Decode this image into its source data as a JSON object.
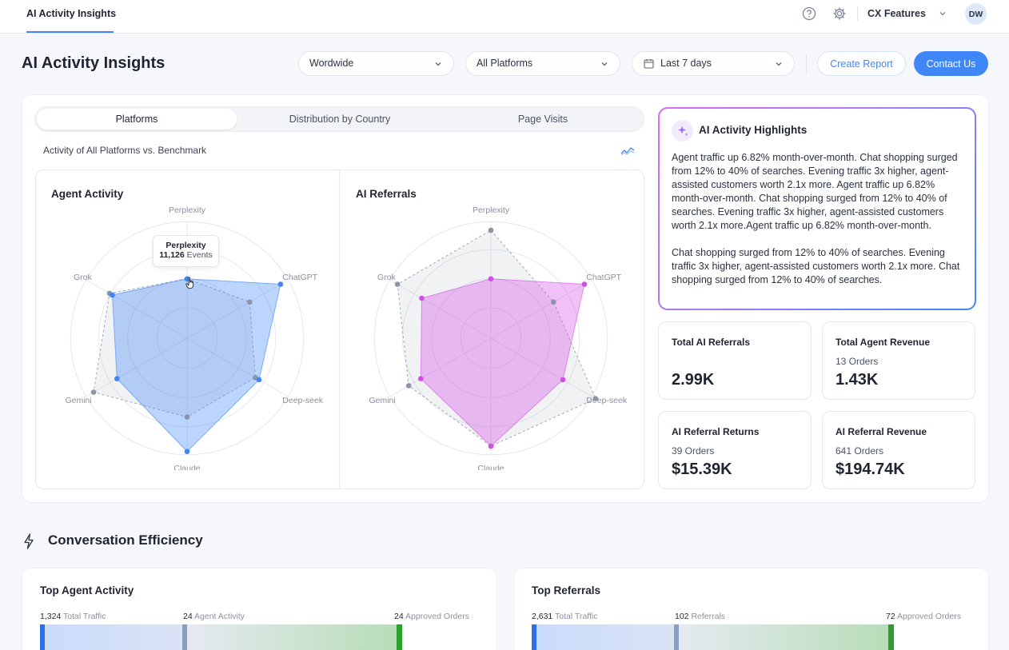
{
  "topbar": {
    "tab_label": "AI Activity Insights",
    "workspace": "CX Features",
    "avatar_initials": "DW",
    "icons": [
      "help-icon",
      "gear-icon",
      "chevron-down-icon"
    ]
  },
  "header": {
    "title": "AI Activity Insights",
    "region_select": "Wordwide",
    "platform_select": "All Platforms",
    "date_select": "Last 7 days",
    "create_report": "Create Report",
    "contact_us": "Contact Us"
  },
  "tabs": [
    {
      "label": "Platforms",
      "active": true
    },
    {
      "label": "Distribution by Country",
      "active": false
    },
    {
      "label": "Page Visits",
      "active": false
    }
  ],
  "chart_section": {
    "subtitle": "Activity of All Platforms vs. Benchmark"
  },
  "chart_data": [
    {
      "type": "radar",
      "title": "Agent Activity",
      "categories": [
        "Perplexity",
        "ChatGPT",
        "Deep-seek",
        "Claude",
        "Gemini",
        "Grok"
      ],
      "series": [
        {
          "role": "main",
          "values": [
            0.55,
            1.0,
            0.77,
            1.05,
            0.75,
            0.8
          ],
          "color": "#3f86f7"
        },
        {
          "role": "benchmark",
          "values": [
            0.55,
            0.67,
            0.73,
            0.73,
            1.0,
            0.83
          ],
          "color": "#8a93a8"
        }
      ],
      "tooltip": {
        "label": "Perplexity",
        "value": "11,126",
        "unit": "Events"
      }
    },
    {
      "type": "radar",
      "title": "AI Referrals",
      "categories": [
        "Perplexity",
        "ChatGPT",
        "Deep-seek",
        "Claude",
        "Gemini",
        "Grok"
      ],
      "series": [
        {
          "role": "main",
          "values": [
            0.55,
            1.0,
            0.77,
            1.0,
            0.75,
            0.74
          ],
          "color": "#d34ee8"
        },
        {
          "role": "benchmark",
          "values": [
            1.0,
            0.67,
            1.12,
            1.0,
            0.88,
            1.0
          ],
          "color": "#8a93a8"
        }
      ]
    }
  ],
  "highlights": {
    "title": "AI Activity Highlights",
    "paragraphs": [
      "Agent traffic up 6.82% month-over-month. Chat shopping surged from 12% to 40% of searches. Evening traffic 3x higher, agent-assisted customers worth 2.1x more. Agent traffic up 6.82% month-over-month. Chat shopping surged from 12% to 40% of searches. Evening traffic 3x higher, agent-assisted customers worth 2.1x more.Agent traffic up 6.82% month-over-month.",
      "Chat shopping surged from 12% to 40% of searches. Evening traffic 3x higher, agent-assisted customers worth 2.1x more. Chat shopping surged from 12% to 40% of searches."
    ]
  },
  "kpis": [
    {
      "label": "Total AI Referrals",
      "sub": "",
      "value": "2.99K"
    },
    {
      "label": "Total Agent Revenue",
      "sub": "13 Orders",
      "value": "1.43K"
    },
    {
      "label": "AI Referral Returns",
      "sub": "39 Orders",
      "value": "$15.39K"
    },
    {
      "label": "AI Referral Revenue",
      "sub": "641 Orders",
      "value": "$194.74K"
    }
  ],
  "conversation": {
    "title": "Conversation Efficiency",
    "cards": [
      {
        "title": "Top Agent Activity",
        "metrics": [
          {
            "value": "1,324",
            "label": "Total Traffic"
          },
          {
            "value": "24",
            "label": "Agent Activity"
          },
          {
            "value": "24",
            "label": "Approved Orders"
          }
        ]
      },
      {
        "title": "Top Referrals",
        "metrics": [
          {
            "value": "2,631",
            "label": "Total Traffic"
          },
          {
            "value": "102",
            "label": "Referrals"
          },
          {
            "value": "72",
            "label": "Approved Orders"
          }
        ]
      }
    ]
  }
}
